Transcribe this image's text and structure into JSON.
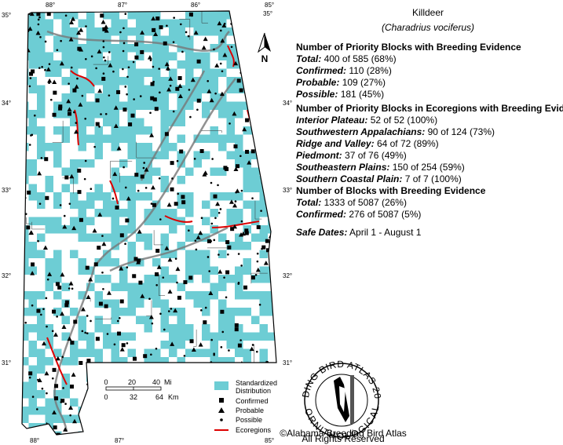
{
  "title": "Killdeer",
  "subtitle": "(Charadrius vociferus)",
  "sections": [
    {
      "heading": "Number of Priority Blocks with Breeding Evidence",
      "rows": [
        {
          "label": "Total:",
          "value": "400 of 585 (68%)"
        },
        {
          "label": "Confirmed:",
          "value": "110 (28%)"
        },
        {
          "label": "Probable:",
          "value": "109 (27%)"
        },
        {
          "label": "Possible:",
          "value": "181 (45%)"
        }
      ]
    },
    {
      "heading": "Number of Priority Blocks in Ecoregions with Breeding Evidence",
      "rows": [
        {
          "label": "Interior Plateau:",
          "value": "52 of 52 (100%)"
        },
        {
          "label": "Southwestern Appalachians:",
          "value": "90 of 124 (73%)"
        },
        {
          "label": "Ridge and Valley:",
          "value": "64 of 72 (89%)"
        },
        {
          "label": "Piedmont:",
          "value": "37 of 76 (49%)"
        },
        {
          "label": "Southeastern Plains:",
          "value": "150 of 254 (59%)"
        },
        {
          "label": "Southern Coastal Plain:",
          "value": "7 of 7 (100%)"
        }
      ]
    },
    {
      "heading": "Number of Blocks with Breeding Evidence",
      "rows": [
        {
          "label": "Total:",
          "value": "1333 of 5087 (26%)"
        },
        {
          "label": "Confirmed:",
          "value": "276 of 5087 (5%)"
        }
      ]
    }
  ],
  "safe_dates": {
    "label": "Safe Dates:",
    "value": "April 1 - August 1"
  },
  "map": {
    "north": "N",
    "lat_left": [
      "35°",
      "34°",
      "33°",
      "32°",
      "31°"
    ],
    "lat_right": [
      "35°",
      "34°",
      "33°",
      "32°",
      "31°"
    ],
    "lon_top": [
      "88°",
      "87°",
      "86°",
      "85°"
    ],
    "lon_bottom": [
      "88°",
      "87°",
      "85°"
    ]
  },
  "scale": {
    "mi": [
      "0",
      "20",
      "40",
      "Mi"
    ],
    "km": [
      "0",
      "32",
      "64",
      "Km"
    ]
  },
  "legend": {
    "distribution": [
      "Standardized",
      "Distribution"
    ],
    "confirmed": "Confirmed",
    "probable": "Probable",
    "possible": "Possible",
    "ecoregions": "Ecoregions"
  },
  "logo": {
    "ring_top": "BREEDING BIRD ATLAS 2000-06",
    "ring_bottom": "ALABAMA ORNITHOLOGICAL SOCIETY",
    "copyright": "©Alabama Breeding Bird Atlas",
    "rights": "All Rights Reserved"
  }
}
